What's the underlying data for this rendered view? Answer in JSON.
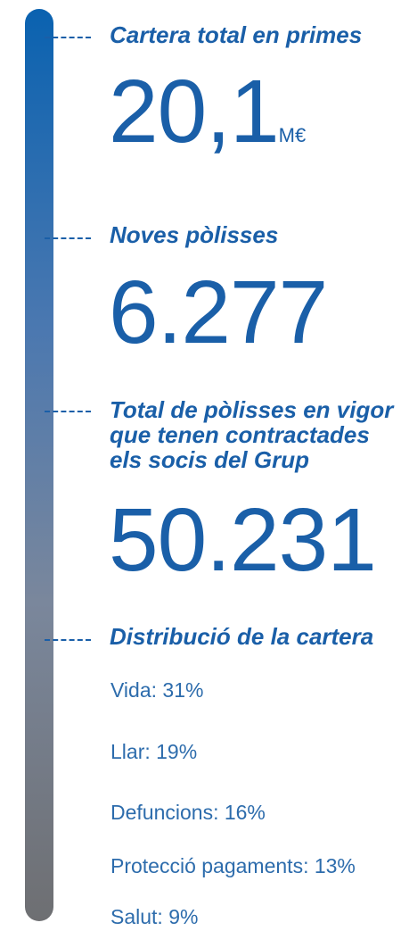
{
  "sections": [
    {
      "title": [
        "Cartera total en primes"
      ],
      "value": "20,1",
      "unit": "M€"
    },
    {
      "title": [
        "Noves pòlisses"
      ],
      "value": "6.277"
    },
    {
      "title": [
        "Total de pòlisses en vigor",
        "que tenen contractades",
        "els socis del Grup"
      ],
      "value": "50.231"
    },
    {
      "title": [
        "Distribució de la cartera"
      ],
      "items": [
        "Vida: 31%",
        "Llar: 19%",
        "Defuncions: 16%",
        "Protecció pagaments: 13%",
        "Salut: 9%"
      ]
    }
  ]
}
